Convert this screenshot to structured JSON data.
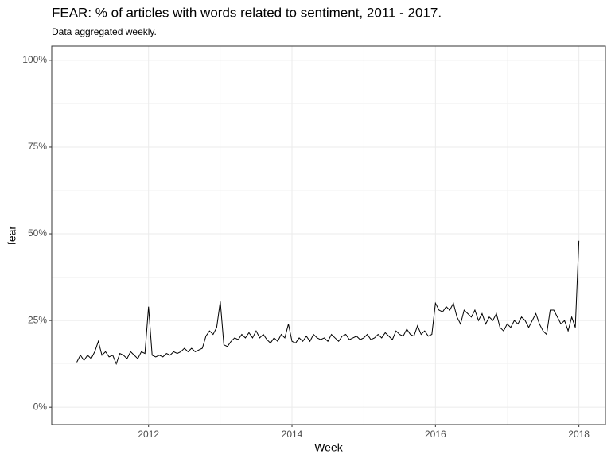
{
  "chart_data": {
    "type": "line",
    "title": "FEAR: % of articles with words related to sentiment, 2011 - 2017.",
    "subtitle": "Data aggregated weekly.",
    "x_label": "Week",
    "y_label": "fear",
    "color": "#000000",
    "grid": true,
    "xlim": [
      2010.65,
      2018.37
    ],
    "xticks": [
      2012,
      2014,
      2016,
      2018
    ],
    "ylim": [
      -5,
      104.1
    ],
    "yticks": [
      {
        "value": 0,
        "label": "0%"
      },
      {
        "value": 25,
        "label": "25%"
      },
      {
        "value": 50,
        "label": "50%"
      },
      {
        "value": 75,
        "label": "75%"
      },
      {
        "value": 100,
        "label": "100%"
      }
    ],
    "x": [
      2011.0,
      2011.05,
      2011.1,
      2011.15,
      2011.2,
      2011.25,
      2011.3,
      2011.35,
      2011.4,
      2011.45,
      2011.5,
      2011.55,
      2011.6,
      2011.65,
      2011.7,
      2011.75,
      2011.8,
      2011.85,
      2011.9,
      2011.95,
      2012.0,
      2012.05,
      2012.1,
      2012.15,
      2012.2,
      2012.25,
      2012.3,
      2012.35,
      2012.4,
      2012.45,
      2012.5,
      2012.55,
      2012.6,
      2012.65,
      2012.7,
      2012.75,
      2012.8,
      2012.85,
      2012.9,
      2012.95,
      2013.0,
      2013.05,
      2013.1,
      2013.15,
      2013.2,
      2013.25,
      2013.3,
      2013.35,
      2013.4,
      2013.45,
      2013.5,
      2013.55,
      2013.6,
      2013.65,
      2013.7,
      2013.75,
      2013.8,
      2013.85,
      2013.9,
      2013.95,
      2014.0,
      2014.05,
      2014.1,
      2014.15,
      2014.2,
      2014.25,
      2014.3,
      2014.35,
      2014.4,
      2014.45,
      2014.5,
      2014.55,
      2014.6,
      2014.65,
      2014.7,
      2014.75,
      2014.8,
      2014.85,
      2014.9,
      2014.95,
      2015.0,
      2015.05,
      2015.1,
      2015.15,
      2015.2,
      2015.25,
      2015.3,
      2015.35,
      2015.4,
      2015.45,
      2015.5,
      2015.55,
      2015.6,
      2015.65,
      2015.7,
      2015.75,
      2015.8,
      2015.85,
      2015.9,
      2015.95,
      2016.0,
      2016.05,
      2016.1,
      2016.15,
      2016.2,
      2016.25,
      2016.3,
      2016.35,
      2016.4,
      2016.45,
      2016.5,
      2016.55,
      2016.6,
      2016.65,
      2016.7,
      2016.75,
      2016.8,
      2016.85,
      2016.9,
      2016.95,
      2017.0,
      2017.05,
      2017.1,
      2017.15,
      2017.2,
      2017.25,
      2017.3,
      2017.35,
      2017.4,
      2017.45,
      2017.5,
      2017.55,
      2017.6,
      2017.65,
      2017.7,
      2017.75,
      2017.8,
      2017.85,
      2017.9,
      2017.95,
      2018.0
    ],
    "values": [
      13,
      15,
      13.5,
      15,
      14,
      16,
      19,
      15,
      16,
      14.5,
      15,
      12.5,
      15.5,
      15,
      14,
      16,
      15,
      14,
      16,
      15.5,
      29,
      15,
      14.5,
      15,
      14.5,
      15.5,
      15,
      16,
      15.5,
      16,
      17,
      16,
      17,
      16,
      16.5,
      17,
      20.5,
      22,
      21,
      23,
      30.5,
      18,
      17.5,
      19,
      20,
      19.5,
      21,
      20,
      21.5,
      20,
      22,
      20,
      21,
      19.5,
      18.5,
      20,
      19,
      21,
      20,
      24,
      19,
      18.5,
      20,
      19,
      20.5,
      19,
      21,
      20,
      19.5,
      20,
      19,
      21,
      20,
      19,
      20.5,
      21,
      19.5,
      20,
      20.5,
      19.5,
      20,
      21,
      19.5,
      20,
      21,
      20,
      21.5,
      20.5,
      19.5,
      22,
      21,
      20.5,
      22.5,
      21,
      20.5,
      23.5,
      21,
      22,
      20.5,
      21,
      30,
      28,
      27.5,
      29,
      28,
      30,
      26,
      24,
      28,
      27,
      26,
      28,
      25,
      27,
      24,
      26,
      25,
      27,
      23,
      22,
      24,
      23,
      25,
      24,
      26,
      25,
      23,
      25,
      27,
      24,
      22,
      21,
      28,
      28,
      26,
      24,
      25,
      22,
      26,
      23,
      48
    ]
  }
}
